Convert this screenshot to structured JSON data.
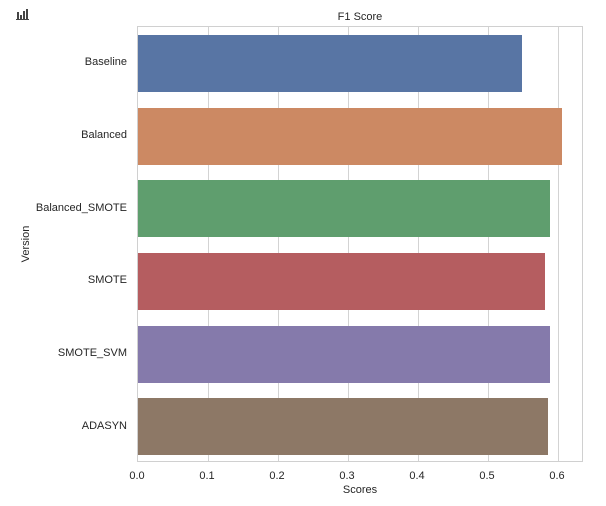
{
  "toolbar": {
    "icon": "bar-chart-icon"
  },
  "chart_data": {
    "type": "bar",
    "orientation": "horizontal",
    "title": "F1 Score",
    "xlabel": "Scores",
    "ylabel": "Version",
    "categories": [
      "Baseline",
      "Balanced",
      "Balanced_SMOTE",
      "SMOTE",
      "SMOTE_SVM",
      "ADASYN"
    ],
    "values": [
      0.549,
      0.606,
      0.589,
      0.582,
      0.588,
      0.586
    ],
    "colors": [
      "#5875a4",
      "#cc8963",
      "#5f9e6e",
      "#b55d60",
      "#857aab",
      "#8d7866"
    ],
    "xlim": [
      0.0,
      0.636
    ],
    "xticks": [
      "0.0",
      "0.1",
      "0.2",
      "0.3",
      "0.4",
      "0.5",
      "0.6"
    ],
    "grid": true,
    "legend": null
  }
}
